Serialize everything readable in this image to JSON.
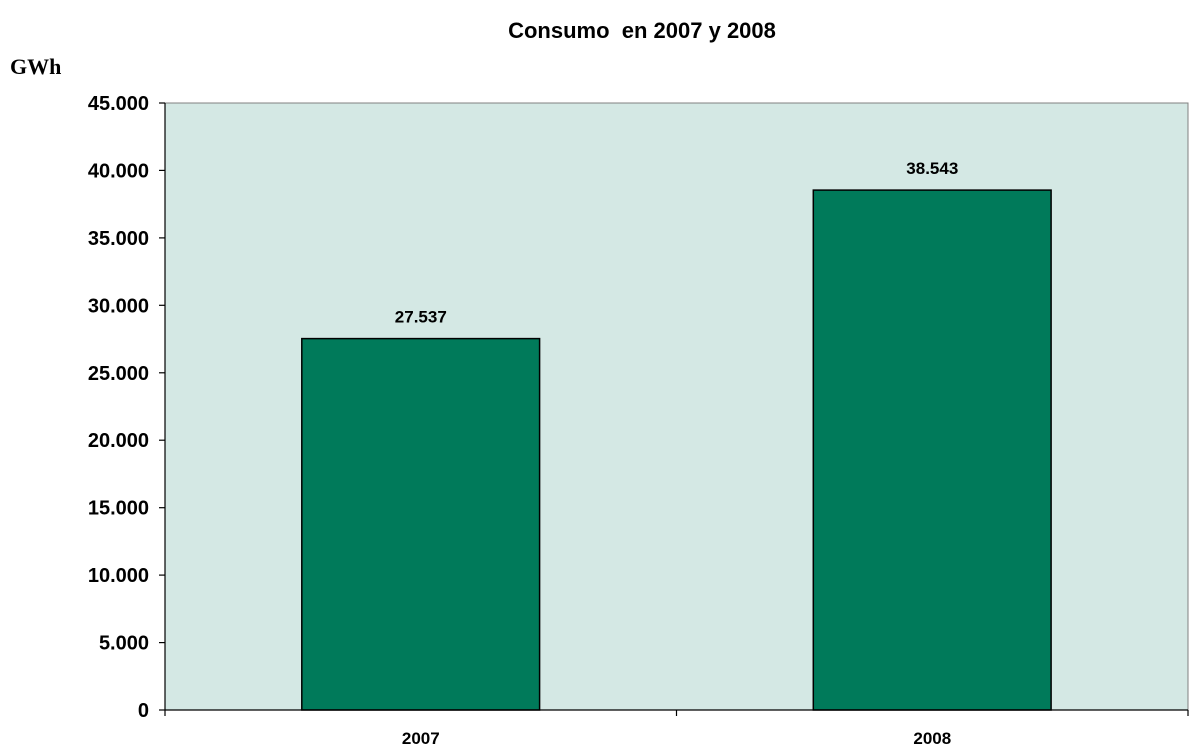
{
  "chart_data": {
    "type": "bar",
    "title": "Consumo  en 2007 y 2008",
    "ylabel": "GWh",
    "xlabel": "",
    "categories": [
      "2007",
      "2008"
    ],
    "values": [
      27537,
      38543
    ],
    "value_labels": [
      "27.537",
      "38.543"
    ],
    "ylim": [
      0,
      45000
    ],
    "yticks": [
      0,
      5000,
      10000,
      15000,
      20000,
      25000,
      30000,
      35000,
      40000,
      45000
    ],
    "ytick_labels": [
      "0",
      "5.000",
      "10.000",
      "15.000",
      "20.000",
      "25.000",
      "30.000",
      "35.000",
      "40.000",
      "45.000"
    ],
    "grid": false,
    "legend": "none",
    "colors": {
      "bar": "#007a5a",
      "plot_background": "#d4e8e4",
      "axis": "#000000"
    }
  }
}
